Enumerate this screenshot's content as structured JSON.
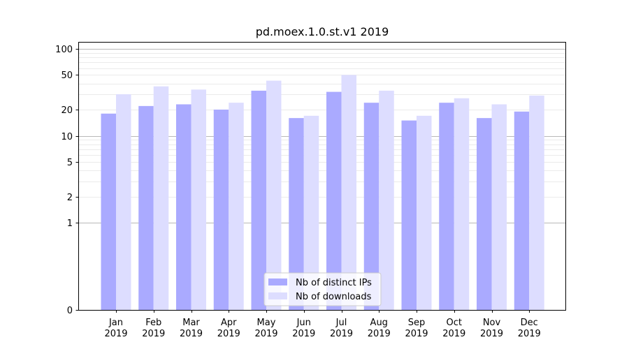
{
  "chart_data": {
    "type": "bar",
    "title": "pd.moex.1.0.st.v1 2019",
    "xlabel": "",
    "ylabel": "",
    "y_scale": "symlog",
    "ylim": [
      0,
      120
    ],
    "y_ticks": [
      0,
      1,
      2,
      5,
      10,
      20,
      50,
      100
    ],
    "y_tick_labels": [
      "0",
      "1",
      "2",
      "5",
      "10",
      "20",
      "50",
      "100"
    ],
    "categories": [
      "Jan",
      "Feb",
      "Mar",
      "Apr",
      "May",
      "Jun",
      "Jul",
      "Aug",
      "Sep",
      "Oct",
      "Nov",
      "Dec"
    ],
    "category_years": [
      "2019",
      "2019",
      "2019",
      "2019",
      "2019",
      "2019",
      "2019",
      "2019",
      "2019",
      "2019",
      "2019",
      "2019"
    ],
    "series": [
      {
        "name": "Nb of distinct IPs",
        "color": "#aaaaff",
        "values": [
          18,
          22,
          23,
          20,
          33,
          16,
          32,
          24,
          15,
          24,
          16,
          19
        ]
      },
      {
        "name": "Nb of downloads",
        "color": "#ddddff",
        "values": [
          30,
          37,
          34,
          24,
          43,
          17,
          50,
          33,
          17,
          27,
          23,
          29
        ]
      }
    ],
    "grid": true,
    "legend_position": "lower-center"
  }
}
